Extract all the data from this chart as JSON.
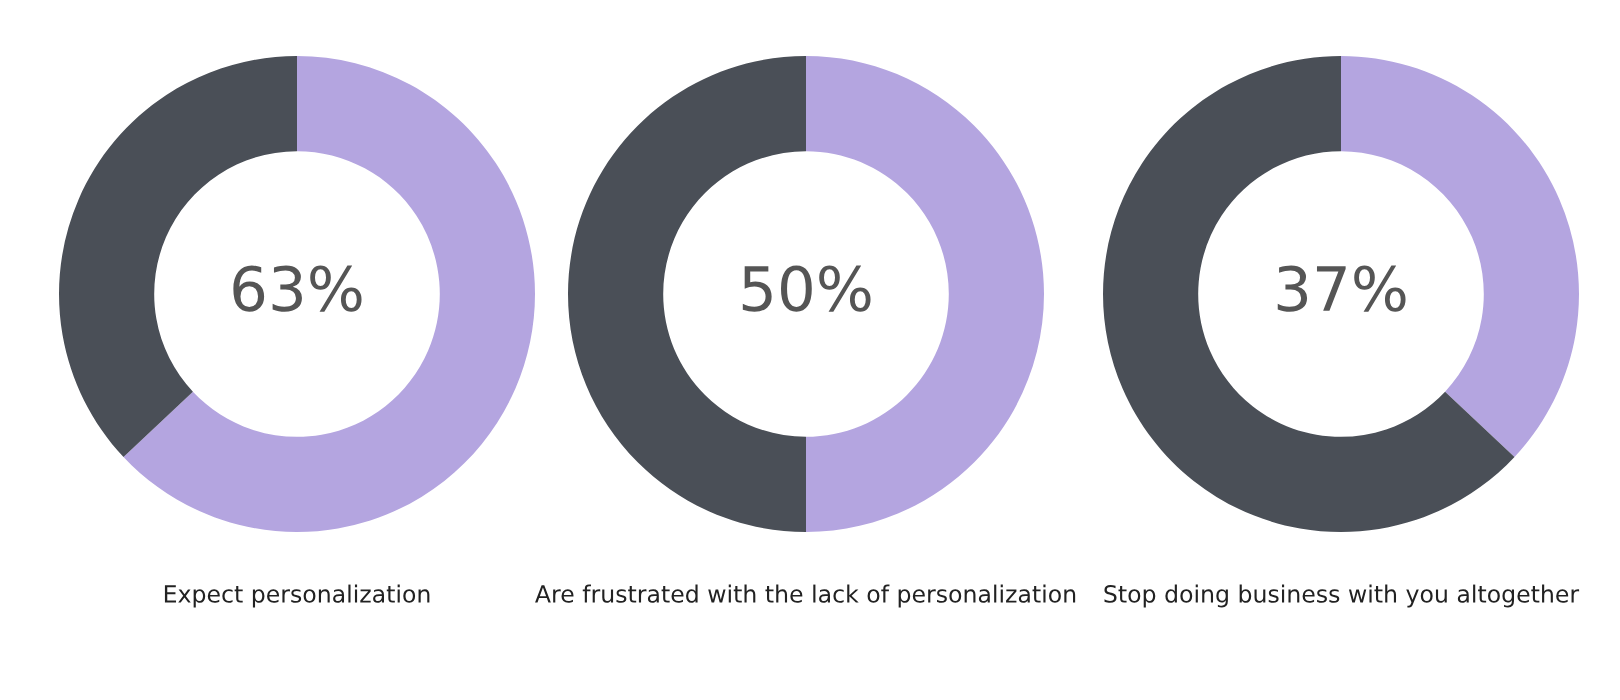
{
  "chart_data": [
    {
      "type": "donut",
      "title": "Expect personalization",
      "categories": [
        null,
        null
      ],
      "values": [
        63,
        37
      ],
      "colors": [
        "#b4a5e0",
        "#4a4f57"
      ],
      "value_labels": [
        "63%",
        null
      ]
    },
    {
      "type": "donut",
      "title": "Are frustrated with the lack of personalization",
      "categories": [
        null,
        null
      ],
      "values": [
        50,
        50
      ],
      "colors": [
        "#b4a5e0",
        "#4a4f57"
      ],
      "value_labels": [
        "50%",
        null
      ]
    },
    {
      "type": "donut",
      "title": "Stop doing business with you altogether",
      "categories": [
        null,
        null
      ],
      "values": [
        37,
        63
      ],
      "colors": [
        "#b4a5e0",
        "#4a4f57"
      ],
      "value_labels": [
        "37%",
        null
      ]
    }
  ]
}
